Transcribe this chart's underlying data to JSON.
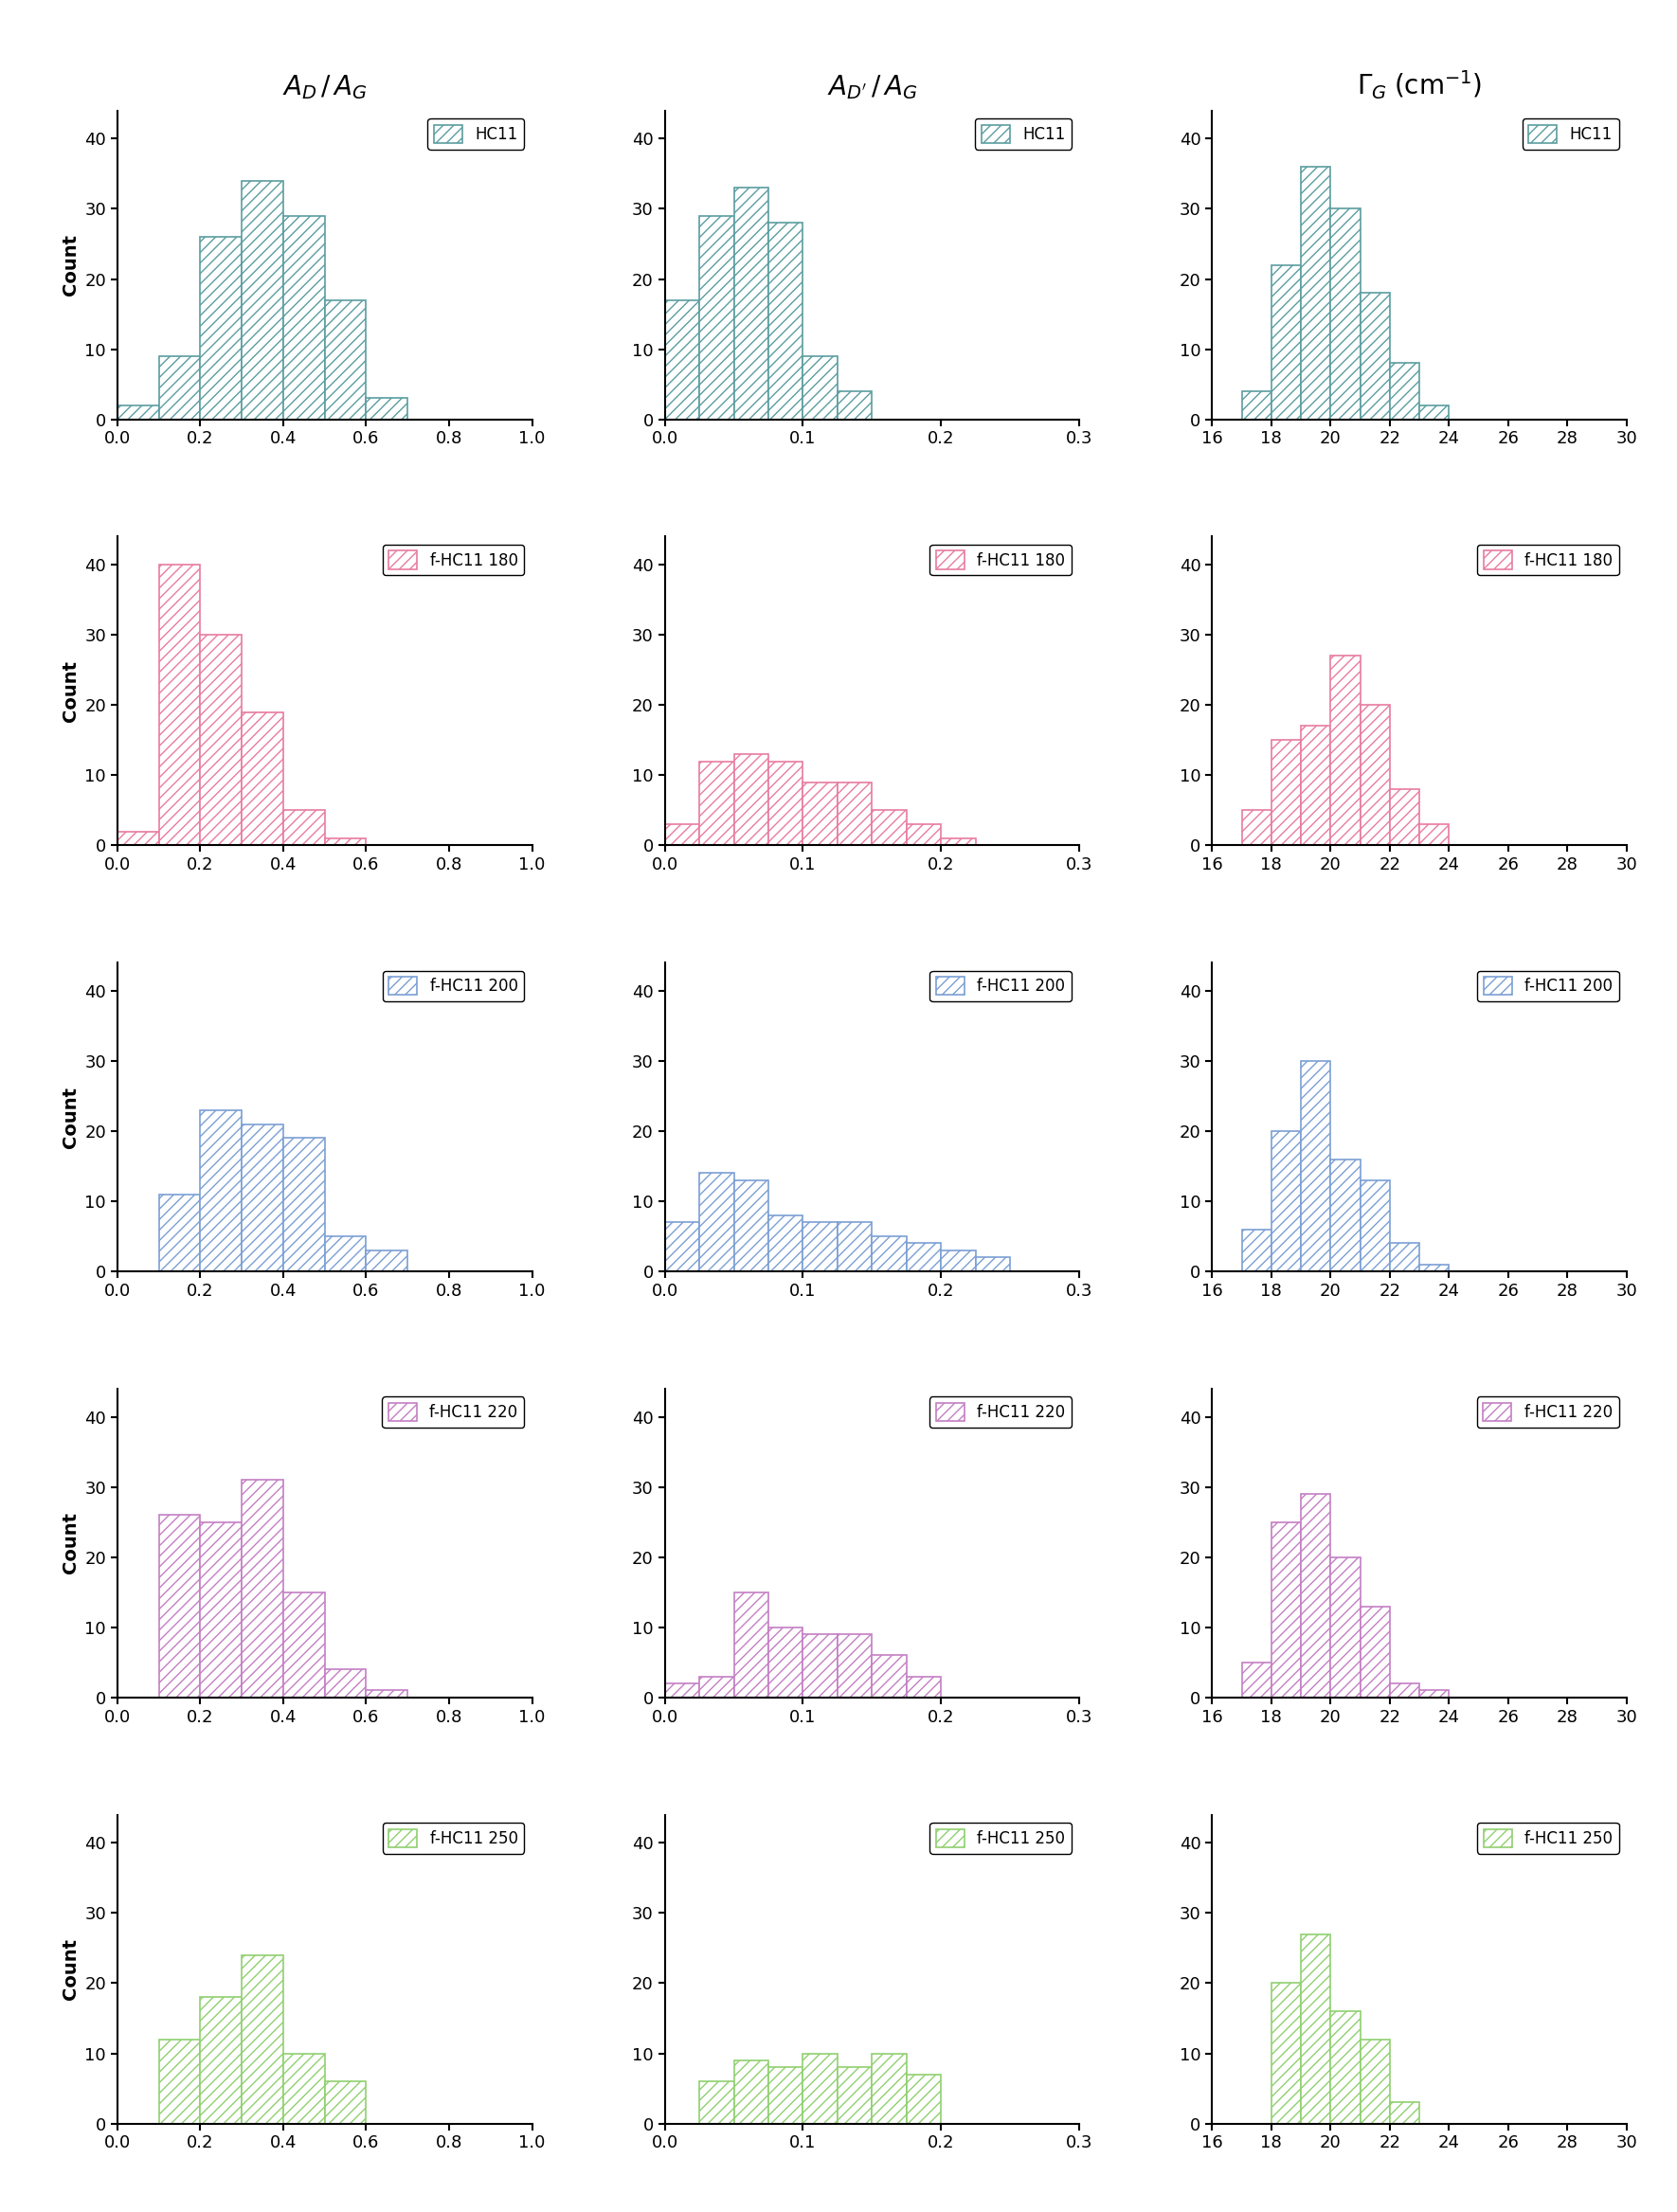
{
  "col_titles": [
    "$A_D\\,/\\,A_G$",
    "$A_{D'}\\,/\\,A_G$",
    "$\\Gamma_G\\;(\\mathrm{cm}^{-1})$"
  ],
  "row_labels": [
    "HC11",
    "f-HC11 180",
    "f-HC11 200",
    "f-HC11 220",
    "f-HC11 250"
  ],
  "colors": [
    "#5B9DA0",
    "#E87CA0",
    "#7B9FD4",
    "#C47FC4",
    "#90D070"
  ],
  "col1_xlim": [
    0.0,
    1.0
  ],
  "col2_xlim": [
    0.0,
    0.3
  ],
  "col3_xlim": [
    16,
    30
  ],
  "ylim": [
    0,
    44
  ],
  "yticks": [
    0,
    10,
    20,
    30,
    40
  ],
  "col1_xticks": [
    0.0,
    0.2,
    0.4,
    0.6,
    0.8,
    1.0
  ],
  "col2_xticks": [
    0.0,
    0.1,
    0.2,
    0.3
  ],
  "col3_xticks": [
    16,
    18,
    20,
    22,
    24,
    26,
    28,
    30
  ],
  "histograms": {
    "row0_col0": {
      "bins": [
        0.0,
        0.1,
        0.2,
        0.3,
        0.4,
        0.5,
        0.6,
        0.7,
        0.8,
        0.9,
        1.0
      ],
      "counts": [
        2,
        9,
        26,
        34,
        29,
        17,
        3,
        0,
        0,
        0
      ]
    },
    "row0_col1": {
      "bins": [
        0.0,
        0.025,
        0.05,
        0.075,
        0.1,
        0.125,
        0.15,
        0.175,
        0.2,
        0.225,
        0.25,
        0.275,
        0.3
      ],
      "counts": [
        17,
        29,
        33,
        28,
        9,
        4,
        0,
        0,
        0,
        0,
        0,
        0
      ]
    },
    "row0_col2": {
      "bins": [
        16,
        17,
        18,
        19,
        20,
        21,
        22,
        23,
        24,
        25,
        26,
        27,
        28,
        29,
        30
      ],
      "counts": [
        0,
        4,
        22,
        36,
        30,
        18,
        8,
        2,
        0,
        0,
        0,
        0,
        0,
        0
      ]
    },
    "row1_col0": {
      "bins": [
        0.0,
        0.1,
        0.2,
        0.3,
        0.4,
        0.5,
        0.6,
        0.7,
        0.8,
        0.9,
        1.0
      ],
      "counts": [
        2,
        40,
        30,
        19,
        5,
        1,
        0,
        0,
        0,
        0
      ]
    },
    "row1_col1": {
      "bins": [
        0.0,
        0.025,
        0.05,
        0.075,
        0.1,
        0.125,
        0.15,
        0.175,
        0.2,
        0.225,
        0.25,
        0.275,
        0.3
      ],
      "counts": [
        3,
        12,
        13,
        12,
        9,
        9,
        5,
        3,
        1,
        0,
        0,
        0
      ]
    },
    "row1_col2": {
      "bins": [
        16,
        17,
        18,
        19,
        20,
        21,
        22,
        23,
        24,
        25,
        26,
        27,
        28,
        29,
        30
      ],
      "counts": [
        0,
        5,
        15,
        17,
        27,
        20,
        8,
        3,
        0,
        0,
        0,
        0,
        0,
        0
      ]
    },
    "row2_col0": {
      "bins": [
        0.0,
        0.1,
        0.2,
        0.3,
        0.4,
        0.5,
        0.6,
        0.7,
        0.8,
        0.9,
        1.0
      ],
      "counts": [
        0,
        11,
        23,
        21,
        19,
        5,
        3,
        0,
        0,
        0
      ]
    },
    "row2_col1": {
      "bins": [
        0.0,
        0.025,
        0.05,
        0.075,
        0.1,
        0.125,
        0.15,
        0.175,
        0.2,
        0.225,
        0.25,
        0.275,
        0.3
      ],
      "counts": [
        7,
        14,
        13,
        8,
        7,
        7,
        5,
        4,
        3,
        2,
        0,
        0
      ]
    },
    "row2_col2": {
      "bins": [
        16,
        17,
        18,
        19,
        20,
        21,
        22,
        23,
        24,
        25,
        26,
        27,
        28,
        29,
        30
      ],
      "counts": [
        0,
        6,
        20,
        30,
        16,
        13,
        4,
        1,
        0,
        0,
        0,
        0,
        0,
        0
      ]
    },
    "row3_col0": {
      "bins": [
        0.0,
        0.1,
        0.2,
        0.3,
        0.4,
        0.5,
        0.6,
        0.7,
        0.8,
        0.9,
        1.0
      ],
      "counts": [
        0,
        26,
        25,
        31,
        15,
        4,
        1,
        0,
        0,
        0
      ]
    },
    "row3_col1": {
      "bins": [
        0.0,
        0.025,
        0.05,
        0.075,
        0.1,
        0.125,
        0.15,
        0.175,
        0.2,
        0.225,
        0.25,
        0.275,
        0.3
      ],
      "counts": [
        2,
        3,
        15,
        10,
        9,
        9,
        6,
        3,
        0,
        0,
        0,
        0
      ]
    },
    "row3_col2": {
      "bins": [
        16,
        17,
        18,
        19,
        20,
        21,
        22,
        23,
        24,
        25,
        26,
        27,
        28,
        29,
        30
      ],
      "counts": [
        0,
        5,
        25,
        29,
        20,
        13,
        2,
        1,
        0,
        0,
        0,
        0,
        0,
        0
      ]
    },
    "row4_col0": {
      "bins": [
        0.0,
        0.1,
        0.2,
        0.3,
        0.4,
        0.5,
        0.6,
        0.7,
        0.8,
        0.9,
        1.0
      ],
      "counts": [
        0,
        12,
        18,
        24,
        10,
        6,
        0,
        0,
        0,
        0
      ]
    },
    "row4_col1": {
      "bins": [
        0.0,
        0.025,
        0.05,
        0.075,
        0.1,
        0.125,
        0.15,
        0.175,
        0.2,
        0.225,
        0.25,
        0.275,
        0.3
      ],
      "counts": [
        0,
        6,
        9,
        8,
        10,
        8,
        10,
        7,
        0,
        0,
        0,
        0
      ]
    },
    "row4_col2": {
      "bins": [
        16,
        17,
        18,
        19,
        20,
        21,
        22,
        23,
        24,
        25,
        26,
        27,
        28,
        29,
        30
      ],
      "counts": [
        0,
        0,
        20,
        27,
        16,
        12,
        3,
        0,
        0,
        0,
        0,
        0,
        0,
        0
      ]
    }
  }
}
